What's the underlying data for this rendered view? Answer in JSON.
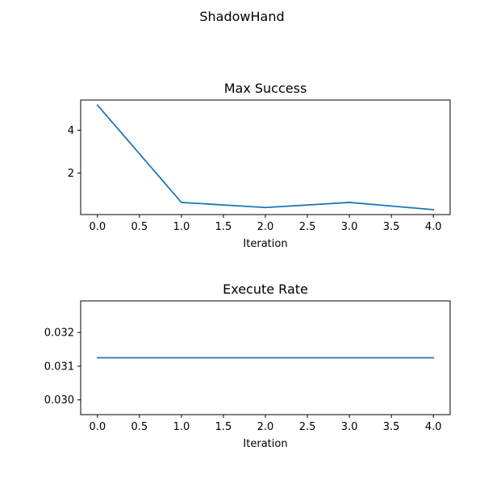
{
  "figure": {
    "title": "ShadowHand"
  },
  "colors": {
    "series": "#1f77b4"
  },
  "chart_data": [
    {
      "type": "line",
      "title": "Max Success",
      "xlabel": "Iteration",
      "ylabel": "",
      "x": [
        0,
        1,
        2,
        3,
        4
      ],
      "series": [
        {
          "values": [
            5.18,
            0.62,
            0.38,
            0.62,
            0.28
          ]
        }
      ],
      "xlim": [
        -0.2,
        4.2
      ],
      "ylim": [
        0.05,
        5.42
      ],
      "xticks": [
        0,
        0.5,
        1,
        1.5,
        2,
        2.5,
        3,
        3.5,
        4
      ],
      "xtick_labels": [
        "0.0",
        "0.5",
        "1.0",
        "1.5",
        "2.0",
        "2.5",
        "3.0",
        "3.5",
        "4.0"
      ],
      "yticks": [
        2,
        4
      ],
      "ytick_labels": [
        "2",
        "4"
      ],
      "grid": false,
      "legend": "none"
    },
    {
      "type": "line",
      "title": "Execute Rate",
      "xlabel": "Iteration",
      "ylabel": "",
      "x": [
        0,
        1,
        2,
        3,
        4
      ],
      "series": [
        {
          "values": [
            0.03125,
            0.03125,
            0.03125,
            0.03125,
            0.03125
          ]
        }
      ],
      "xlim": [
        -0.2,
        4.2
      ],
      "ylim": [
        0.0295625,
        0.0329375
      ],
      "xticks": [
        0,
        0.5,
        1,
        1.5,
        2,
        2.5,
        3,
        3.5,
        4
      ],
      "xtick_labels": [
        "0.0",
        "0.5",
        "1.0",
        "1.5",
        "2.0",
        "2.5",
        "3.0",
        "3.5",
        "4.0"
      ],
      "yticks": [
        0.03,
        0.031,
        0.032
      ],
      "ytick_labels": [
        "0.030",
        "0.031",
        "0.032"
      ],
      "grid": false,
      "legend": "none"
    }
  ]
}
